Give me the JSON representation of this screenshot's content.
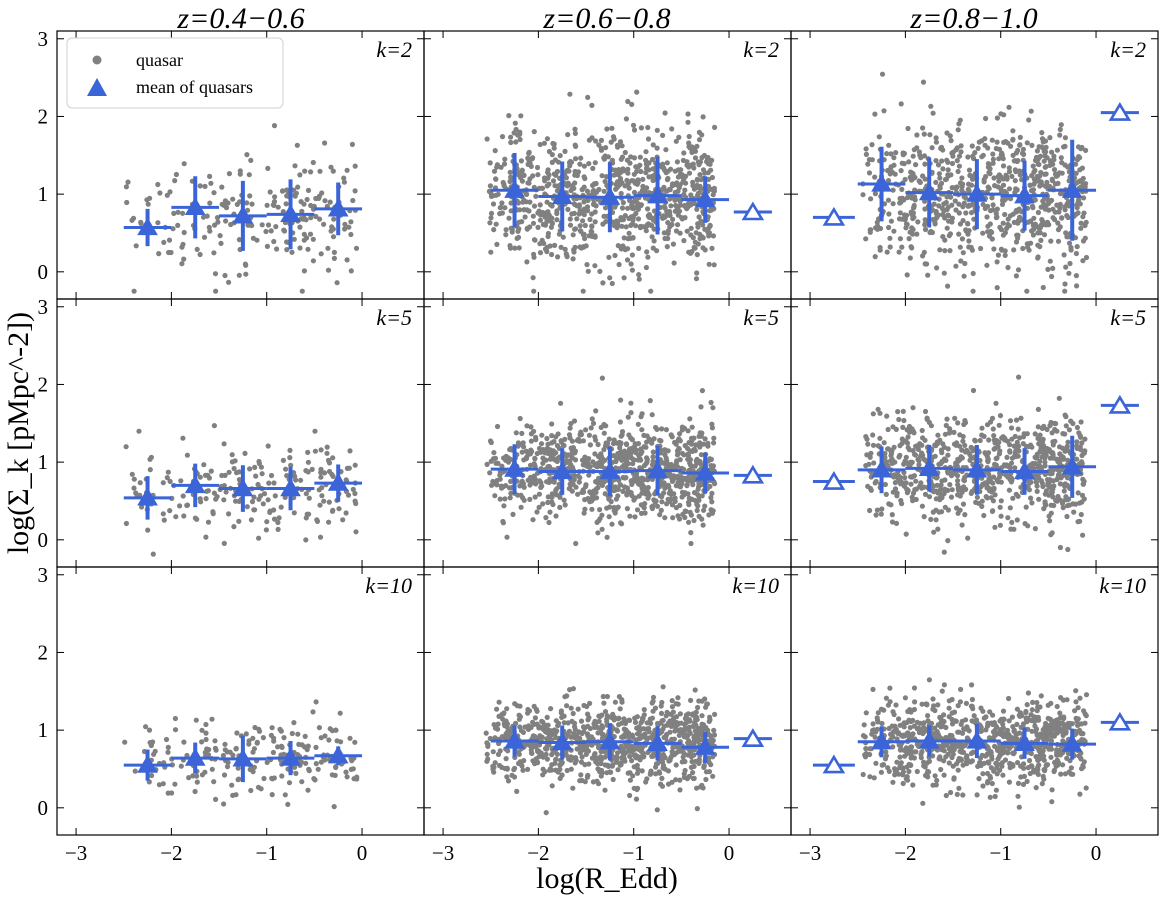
{
  "chart_data": {
    "type": "scatter",
    "layout": "3x3 grid, shared axes",
    "column_titles": [
      "z=0.4−0.6",
      "z=0.6−0.8",
      "z=0.8−1.0"
    ],
    "row_labels": [
      "k=2",
      "k=5",
      "k=10"
    ],
    "xlabel": "log(R_Edd)",
    "ylabel": "log(Σ_k [pMpc^-2])",
    "xlim": [
      -3.2,
      0.65
    ],
    "ylim": [
      -0.35,
      3.1
    ],
    "xticks": [
      -3,
      -2,
      -1,
      0
    ],
    "yticks": [
      0,
      1,
      2,
      3
    ],
    "legend": {
      "position": "top-left of first panel",
      "items": [
        {
          "label": "quasar",
          "marker": "gray-dot"
        },
        {
          "label": "mean of quasars",
          "marker": "blue-filled-triangle"
        }
      ]
    },
    "colors": {
      "quasar": "#808080",
      "mean": "#3a64d8"
    },
    "cloud_size": [
      220,
      900,
      800
    ],
    "panels": [
      {
        "row": 0,
        "col": 0,
        "k_label": "k=2",
        "cloud": {
          "xmin": -2.5,
          "xmax": -0.05,
          "ymean": 0.75,
          "ysd": 0.38
        },
        "means": [
          {
            "x": -2.25,
            "y": 0.57,
            "xerr": 0.25,
            "yerr": 0.24,
            "filled": true
          },
          {
            "x": -1.75,
            "y": 0.83,
            "xerr": 0.25,
            "yerr": 0.4,
            "filled": true
          },
          {
            "x": -1.25,
            "y": 0.72,
            "xerr": 0.25,
            "yerr": 0.45,
            "filled": true
          },
          {
            "x": -0.75,
            "y": 0.74,
            "xerr": 0.25,
            "yerr": 0.45,
            "filled": true
          },
          {
            "x": -0.25,
            "y": 0.81,
            "xerr": 0.25,
            "yerr": 0.34,
            "filled": true
          }
        ]
      },
      {
        "row": 0,
        "col": 1,
        "k_label": "k=2",
        "cloud": {
          "xmin": -2.55,
          "xmax": -0.15,
          "ymean": 0.98,
          "ysd": 0.42
        },
        "means": [
          {
            "x": -2.25,
            "y": 1.05,
            "xerr": 0.25,
            "yerr": 0.48,
            "filled": true
          },
          {
            "x": -1.75,
            "y": 0.97,
            "xerr": 0.25,
            "yerr": 0.45,
            "filled": true
          },
          {
            "x": -1.25,
            "y": 0.96,
            "xerr": 0.25,
            "yerr": 0.45,
            "filled": true
          },
          {
            "x": -0.75,
            "y": 0.98,
            "xerr": 0.25,
            "yerr": 0.5,
            "filled": true
          },
          {
            "x": -0.25,
            "y": 0.93,
            "xerr": 0.25,
            "yerr": 0.3,
            "filled": true
          },
          {
            "x": 0.25,
            "y": 0.77,
            "xerr": 0.2,
            "yerr": 0.0,
            "filled": false
          }
        ]
      },
      {
        "row": 0,
        "col": 2,
        "k_label": "k=2",
        "cloud": {
          "xmin": -2.45,
          "xmax": -0.1,
          "ymean": 1.0,
          "ysd": 0.45
        },
        "means": [
          {
            "x": -2.75,
            "y": 0.7,
            "xerr": 0.22,
            "yerr": 0.0,
            "filled": false
          },
          {
            "x": -2.25,
            "y": 1.13,
            "xerr": 0.25,
            "yerr": 0.48,
            "filled": true
          },
          {
            "x": -1.75,
            "y": 1.02,
            "xerr": 0.25,
            "yerr": 0.45,
            "filled": true
          },
          {
            "x": -1.25,
            "y": 1.0,
            "xerr": 0.25,
            "yerr": 0.45,
            "filled": true
          },
          {
            "x": -0.75,
            "y": 0.98,
            "xerr": 0.25,
            "yerr": 0.45,
            "filled": true
          },
          {
            "x": -0.25,
            "y": 1.05,
            "xerr": 0.25,
            "yerr": 0.65,
            "filled": true
          },
          {
            "x": 0.25,
            "y": 2.05,
            "xerr": 0.2,
            "yerr": 0.0,
            "filled": false
          }
        ]
      },
      {
        "row": 1,
        "col": 0,
        "k_label": "k=5",
        "cloud": {
          "xmin": -2.5,
          "xmax": -0.05,
          "ymean": 0.68,
          "ysd": 0.3
        },
        "means": [
          {
            "x": -2.25,
            "y": 0.54,
            "xerr": 0.25,
            "yerr": 0.28,
            "filled": true
          },
          {
            "x": -1.75,
            "y": 0.7,
            "xerr": 0.25,
            "yerr": 0.28,
            "filled": true
          },
          {
            "x": -1.25,
            "y": 0.66,
            "xerr": 0.25,
            "yerr": 0.3,
            "filled": true
          },
          {
            "x": -0.75,
            "y": 0.66,
            "xerr": 0.25,
            "yerr": 0.28,
            "filled": true
          },
          {
            "x": -0.25,
            "y": 0.73,
            "xerr": 0.25,
            "yerr": 0.24,
            "filled": true
          }
        ]
      },
      {
        "row": 1,
        "col": 1,
        "k_label": "k=5",
        "cloud": {
          "xmin": -2.55,
          "xmax": -0.15,
          "ymean": 0.88,
          "ysd": 0.32
        },
        "means": [
          {
            "x": -2.25,
            "y": 0.91,
            "xerr": 0.25,
            "yerr": 0.32,
            "filled": true
          },
          {
            "x": -1.75,
            "y": 0.88,
            "xerr": 0.25,
            "yerr": 0.3,
            "filled": true
          },
          {
            "x": -1.25,
            "y": 0.88,
            "xerr": 0.25,
            "yerr": 0.32,
            "filled": true
          },
          {
            "x": -0.75,
            "y": 0.89,
            "xerr": 0.25,
            "yerr": 0.32,
            "filled": true
          },
          {
            "x": -0.25,
            "y": 0.86,
            "xerr": 0.25,
            "yerr": 0.26,
            "filled": true
          },
          {
            "x": 0.25,
            "y": 0.83,
            "xerr": 0.2,
            "yerr": 0.0,
            "filled": false
          }
        ]
      },
      {
        "row": 1,
        "col": 2,
        "k_label": "k=5",
        "cloud": {
          "xmin": -2.45,
          "xmax": -0.1,
          "ymean": 0.9,
          "ysd": 0.33
        },
        "means": [
          {
            "x": -2.75,
            "y": 0.75,
            "xerr": 0.22,
            "yerr": 0.0,
            "filled": false
          },
          {
            "x": -2.25,
            "y": 0.9,
            "xerr": 0.25,
            "yerr": 0.3,
            "filled": true
          },
          {
            "x": -1.75,
            "y": 0.92,
            "xerr": 0.25,
            "yerr": 0.3,
            "filled": true
          },
          {
            "x": -1.25,
            "y": 0.9,
            "xerr": 0.25,
            "yerr": 0.32,
            "filled": true
          },
          {
            "x": -0.75,
            "y": 0.88,
            "xerr": 0.25,
            "yerr": 0.3,
            "filled": true
          },
          {
            "x": -0.25,
            "y": 0.94,
            "xerr": 0.25,
            "yerr": 0.4,
            "filled": true
          },
          {
            "x": 0.25,
            "y": 1.73,
            "xerr": 0.2,
            "yerr": 0.0,
            "filled": false
          }
        ]
      },
      {
        "row": 2,
        "col": 0,
        "k_label": "k=10",
        "cloud": {
          "xmin": -2.5,
          "xmax": -0.05,
          "ymean": 0.62,
          "ysd": 0.25
        },
        "means": [
          {
            "x": -2.25,
            "y": 0.55,
            "xerr": 0.25,
            "yerr": 0.2,
            "filled": true
          },
          {
            "x": -1.75,
            "y": 0.64,
            "xerr": 0.25,
            "yerr": 0.2,
            "filled": true
          },
          {
            "x": -1.25,
            "y": 0.63,
            "xerr": 0.25,
            "yerr": 0.3,
            "filled": true
          },
          {
            "x": -0.75,
            "y": 0.64,
            "xerr": 0.25,
            "yerr": 0.22,
            "filled": true
          },
          {
            "x": -0.25,
            "y": 0.67,
            "xerr": 0.25,
            "yerr": 0.12,
            "filled": true
          }
        ]
      },
      {
        "row": 2,
        "col": 1,
        "k_label": "k=10",
        "cloud": {
          "xmin": -2.55,
          "xmax": -0.15,
          "ymean": 0.83,
          "ysd": 0.26
        },
        "means": [
          {
            "x": -2.25,
            "y": 0.86,
            "xerr": 0.25,
            "yerr": 0.2,
            "filled": true
          },
          {
            "x": -1.75,
            "y": 0.84,
            "xerr": 0.25,
            "yerr": 0.22,
            "filled": true
          },
          {
            "x": -1.25,
            "y": 0.85,
            "xerr": 0.25,
            "yerr": 0.24,
            "filled": true
          },
          {
            "x": -0.75,
            "y": 0.83,
            "xerr": 0.25,
            "yerr": 0.22,
            "filled": true
          },
          {
            "x": -0.25,
            "y": 0.78,
            "xerr": 0.25,
            "yerr": 0.2,
            "filled": true
          },
          {
            "x": 0.25,
            "y": 0.89,
            "xerr": 0.2,
            "yerr": 0.0,
            "filled": false
          }
        ]
      },
      {
        "row": 2,
        "col": 2,
        "k_label": "k=10",
        "cloud": {
          "xmin": -2.45,
          "xmax": -0.1,
          "ymean": 0.85,
          "ysd": 0.27
        },
        "means": [
          {
            "x": -2.75,
            "y": 0.55,
            "xerr": 0.22,
            "yerr": 0.0,
            "filled": false
          },
          {
            "x": -2.25,
            "y": 0.85,
            "xerr": 0.25,
            "yerr": 0.2,
            "filled": true
          },
          {
            "x": -1.75,
            "y": 0.86,
            "xerr": 0.25,
            "yerr": 0.2,
            "filled": true
          },
          {
            "x": -1.25,
            "y": 0.86,
            "xerr": 0.25,
            "yerr": 0.22,
            "filled": true
          },
          {
            "x": -0.75,
            "y": 0.83,
            "xerr": 0.25,
            "yerr": 0.2,
            "filled": true
          },
          {
            "x": -0.25,
            "y": 0.82,
            "xerr": 0.25,
            "yerr": 0.2,
            "filled": true
          },
          {
            "x": 0.25,
            "y": 1.1,
            "xerr": 0.2,
            "yerr": 0.0,
            "filled": false
          }
        ]
      }
    ]
  }
}
